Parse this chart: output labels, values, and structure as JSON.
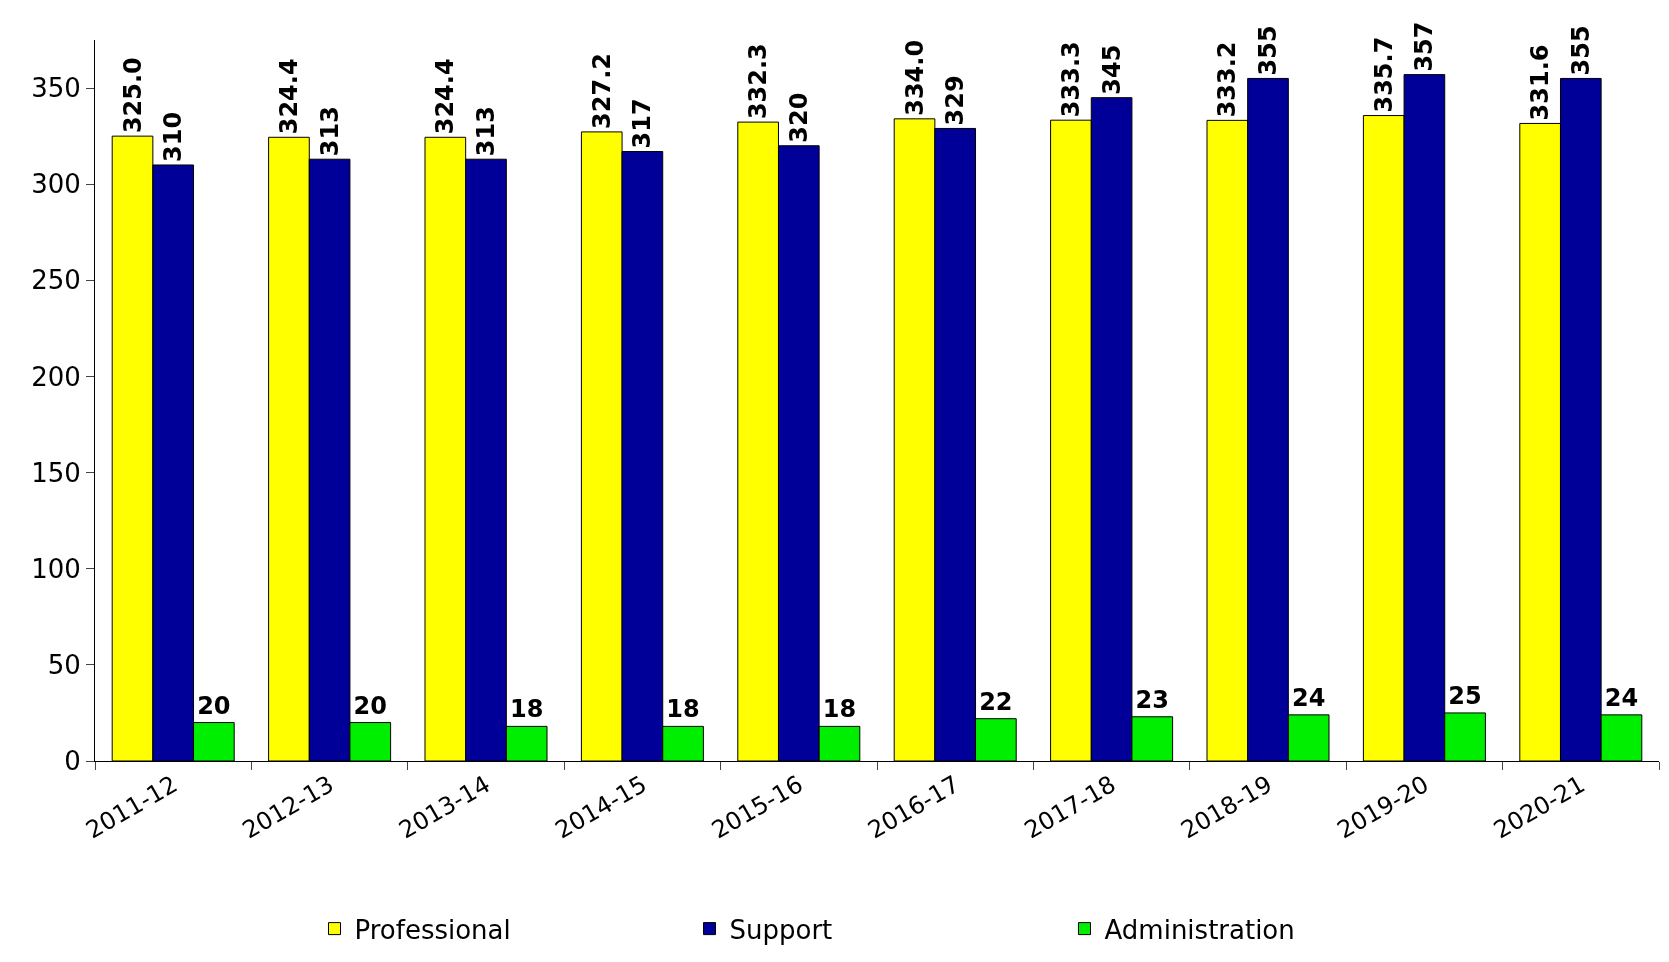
{
  "chart_data": {
    "type": "bar",
    "categories": [
      "2011-12",
      "2012-13",
      "2013-14",
      "2014-15",
      "2015-16",
      "2016-17",
      "2017-18",
      "2018-19",
      "2019-20",
      "2020-21"
    ],
    "series": [
      {
        "name": "Professional",
        "color": "#ffff00",
        "values": [
          325.0,
          324.4,
          324.4,
          327.2,
          332.3,
          334.0,
          333.3,
          333.2,
          335.7,
          331.6
        ],
        "value_labels": [
          "325.0",
          "324.4",
          "324.4",
          "327.2",
          "332.3",
          "334.0",
          "333.3",
          "333.2",
          "335.7",
          "331.6"
        ]
      },
      {
        "name": "Support",
        "color": "#000099",
        "values": [
          310,
          313,
          313,
          317,
          320,
          329,
          345,
          355,
          357,
          355
        ],
        "value_labels": [
          "310",
          "313",
          "313",
          "317",
          "320",
          "329",
          "345",
          "355",
          "357",
          "355"
        ]
      },
      {
        "name": "Administration",
        "color": "#00ee00",
        "values": [
          20,
          20,
          18,
          18,
          18,
          22,
          23,
          24,
          25,
          24
        ],
        "value_labels": [
          "20",
          "20",
          "18",
          "18",
          "18",
          "22",
          "23",
          "24",
          "25",
          "24"
        ]
      }
    ],
    "ylim": [
      0,
      375
    ],
    "yticks": [
      0,
      50,
      100,
      150,
      200,
      250,
      300,
      350
    ],
    "grid": false,
    "legend": "bottom"
  }
}
